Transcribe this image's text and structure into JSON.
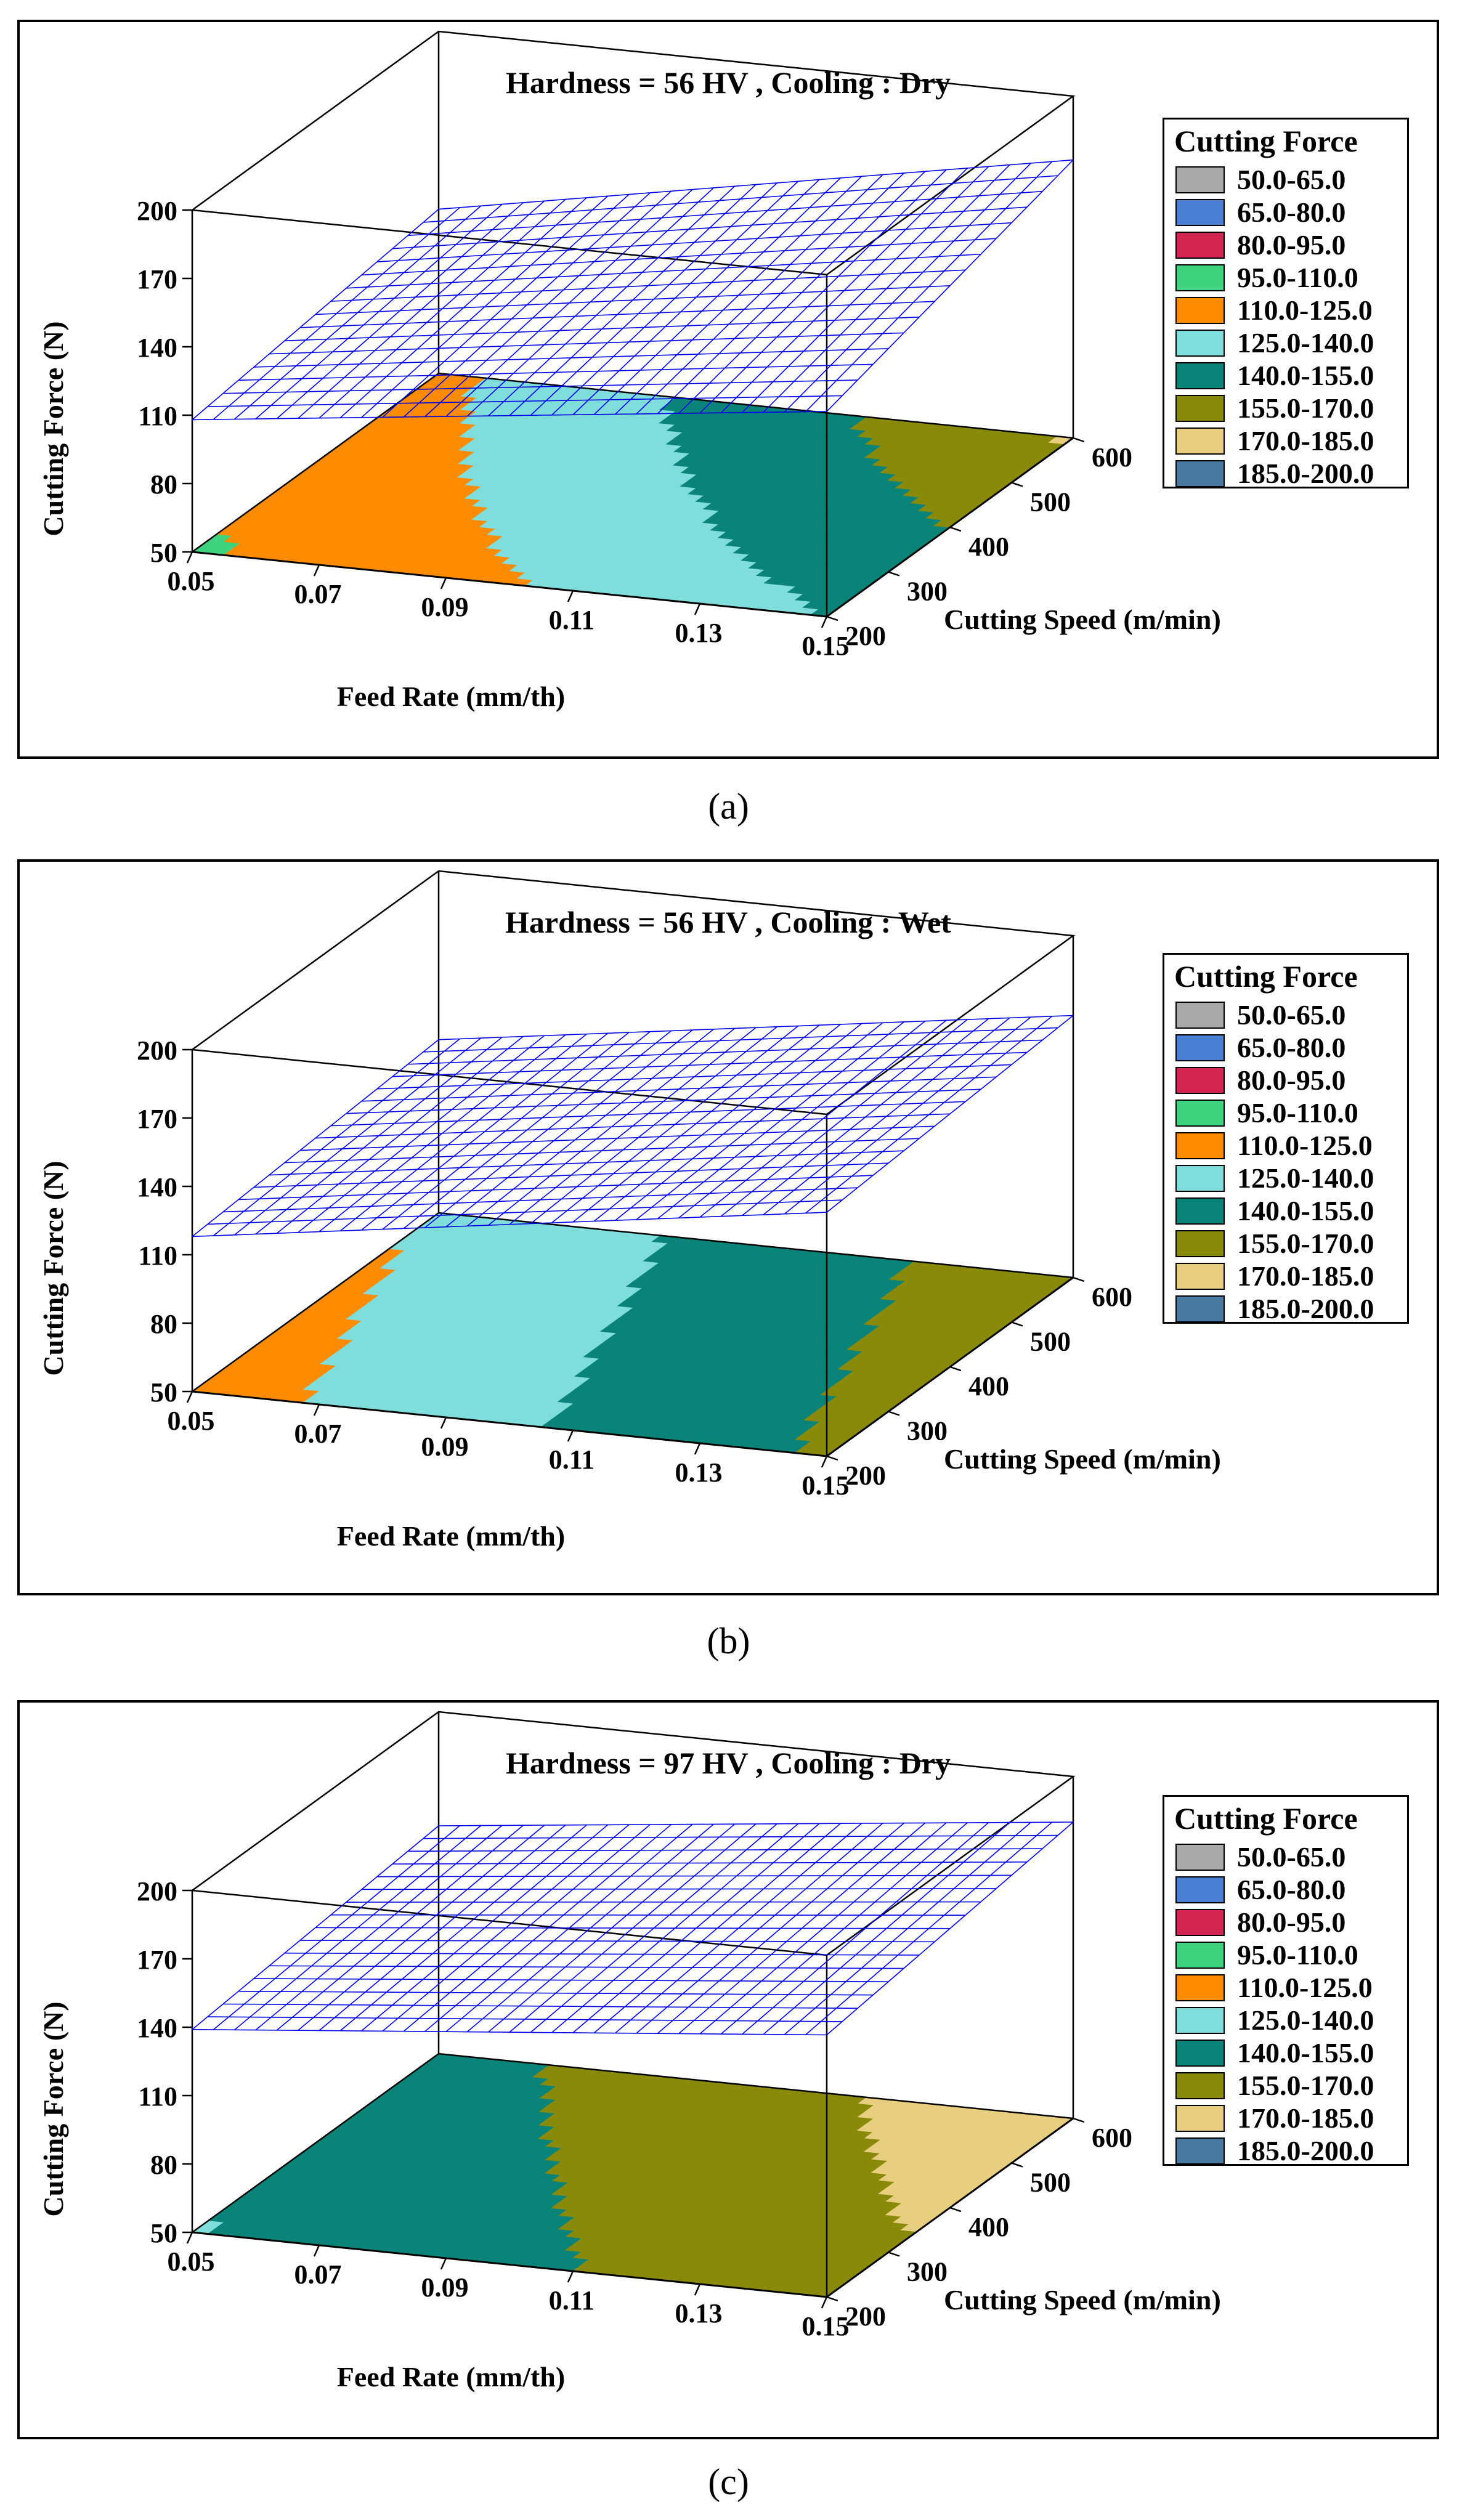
{
  "legend": {
    "title": "Cutting Force",
    "items": [
      {
        "label": "50.0-65.0",
        "color": "#a9a9a9"
      },
      {
        "label": "65.0-80.0",
        "color": "#4a7fd4"
      },
      {
        "label": "80.0-95.0",
        "color": "#d42452"
      },
      {
        "label": "95.0-110.0",
        "color": "#3fd37f"
      },
      {
        "label": "110.0-125.0",
        "color": "#ff8c00"
      },
      {
        "label": "125.0-140.0",
        "color": "#7fdddb"
      },
      {
        "label": "140.0-155.0",
        "color": "#0a8378"
      },
      {
        "label": "155.0-170.0",
        "color": "#8a8a0a"
      },
      {
        "label": "170.0-185.0",
        "color": "#e8cf80"
      },
      {
        "label": "185.0-200.0",
        "color": "#4978a0"
      }
    ]
  },
  "captions": [
    "(a)",
    "(b)",
    "(c)"
  ],
  "colors": {
    "mesh": "#0000e8",
    "frame": "#000000"
  },
  "chart_data": [
    {
      "type": "surface3d",
      "title": "Hardness = 56 HV , Cooling : Dry",
      "xlabel": "Feed Rate (mm/th)",
      "ylabel": "Cutting Speed (m/min)",
      "zlabel": "Cutting Force (N)",
      "x_ticks": [
        "0.05",
        "0.07",
        "0.09",
        "0.11",
        "0.13",
        "0.15"
      ],
      "y_ticks": [
        "200",
        "300",
        "400",
        "500",
        "600"
      ],
      "z_ticks": [
        "50",
        "80",
        "110",
        "140",
        "170",
        "200"
      ],
      "xlim": [
        0.05,
        0.15
      ],
      "ylim": [
        200,
        600
      ],
      "zlim": [
        50,
        200
      ],
      "surface": {
        "f00": 108,
        "f10": 140,
        "f01": 122,
        "f11": 172
      },
      "note": "f00: feed 0.05/speed 200, f10: feed 0.15/speed 200, f01: feed 0.05/speed 600, f11: feed 0.15/speed 600"
    },
    {
      "type": "surface3d",
      "title": "Hardness = 56 HV , Cooling : Wet",
      "xlabel": "Feed Rate (mm/th)",
      "ylabel": "Cutting Speed (m/min)",
      "zlabel": "Cutting Force (N)",
      "x_ticks": [
        "0.05",
        "0.07",
        "0.09",
        "0.11",
        "0.13",
        "0.15"
      ],
      "y_ticks": [
        "200",
        "300",
        "400",
        "500",
        "600"
      ],
      "z_ticks": [
        "50",
        "80",
        "110",
        "140",
        "170",
        "200"
      ],
      "xlim": [
        0.05,
        0.15
      ],
      "ylim": [
        200,
        600
      ],
      "zlim": [
        50,
        200
      ],
      "surface": {
        "f00": 118,
        "f10": 157,
        "f01": 126,
        "f11": 165
      }
    },
    {
      "type": "surface3d",
      "title": "Hardness = 97 HV , Cooling : Dry",
      "xlabel": "Feed Rate (mm/th)",
      "ylabel": "Cutting Speed (m/min)",
      "zlabel": "Cutting Force (N)",
      "x_ticks": [
        "0.05",
        "0.07",
        "0.09",
        "0.11",
        "0.13",
        "0.15"
      ],
      "y_ticks": [
        "200",
        "300",
        "400",
        "500",
        "600"
      ],
      "z_ticks": [
        "50",
        "80",
        "110",
        "140",
        "170",
        "200"
      ],
      "xlim": [
        0.05,
        0.15
      ],
      "ylim": [
        200,
        600
      ],
      "zlim": [
        50,
        200
      ],
      "surface": {
        "f00": 139,
        "f10": 165,
        "f01": 150,
        "f11": 180
      }
    }
  ]
}
